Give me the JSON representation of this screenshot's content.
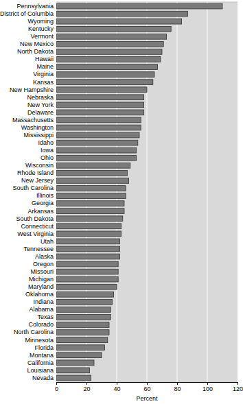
{
  "chart_data": {
    "type": "bar",
    "orientation": "horizontal",
    "categories": [
      "Pennsylvania",
      "District of Columbia",
      "Wyoming",
      "Kentucky",
      "Vermont",
      "New Mexico",
      "North Dakota",
      "Hawaii",
      "Maine",
      "Virginia",
      "Kansas",
      "New Hampshire",
      "Nebraska",
      "New York",
      "Delaware",
      "Massachusetts",
      "Washington",
      "Mississippi",
      "Idaho",
      "Iowa",
      "Ohio",
      "Wisconsin",
      "Rhode Island",
      "New Jersey",
      "South Carolina",
      "Illinois",
      "Georgia",
      "Arkansas",
      "South Dakota",
      "Connecticut",
      "West Virginia",
      "Utah",
      "Tennessee",
      "Alaska",
      "Oregon",
      "Missouri",
      "Michigan",
      "Maryland",
      "Oklahoma",
      "Indiana",
      "Alabama",
      "Texas",
      "Colorado",
      "North Carolina",
      "Minnesota",
      "Florida",
      "Montana",
      "California",
      "Louisiana",
      "Nevada"
    ],
    "values": [
      110,
      87,
      83,
      76,
      73,
      71,
      70,
      69,
      67,
      65,
      64,
      60,
      58,
      58,
      58,
      56,
      56,
      55,
      54,
      53,
      53,
      49,
      47,
      48,
      46,
      46,
      45,
      45,
      44,
      43,
      43,
      42,
      42,
      42,
      41,
      41,
      41,
      40,
      38,
      37,
      36,
      36,
      35,
      35,
      34,
      32,
      30,
      25,
      22,
      23
    ],
    "color": "#7a7a7a",
    "xlabel": "Percent",
    "xlim": [
      0,
      120
    ],
    "xticks": [
      0,
      20,
      40,
      60,
      80,
      100,
      120
    ],
    "grid": true
  }
}
